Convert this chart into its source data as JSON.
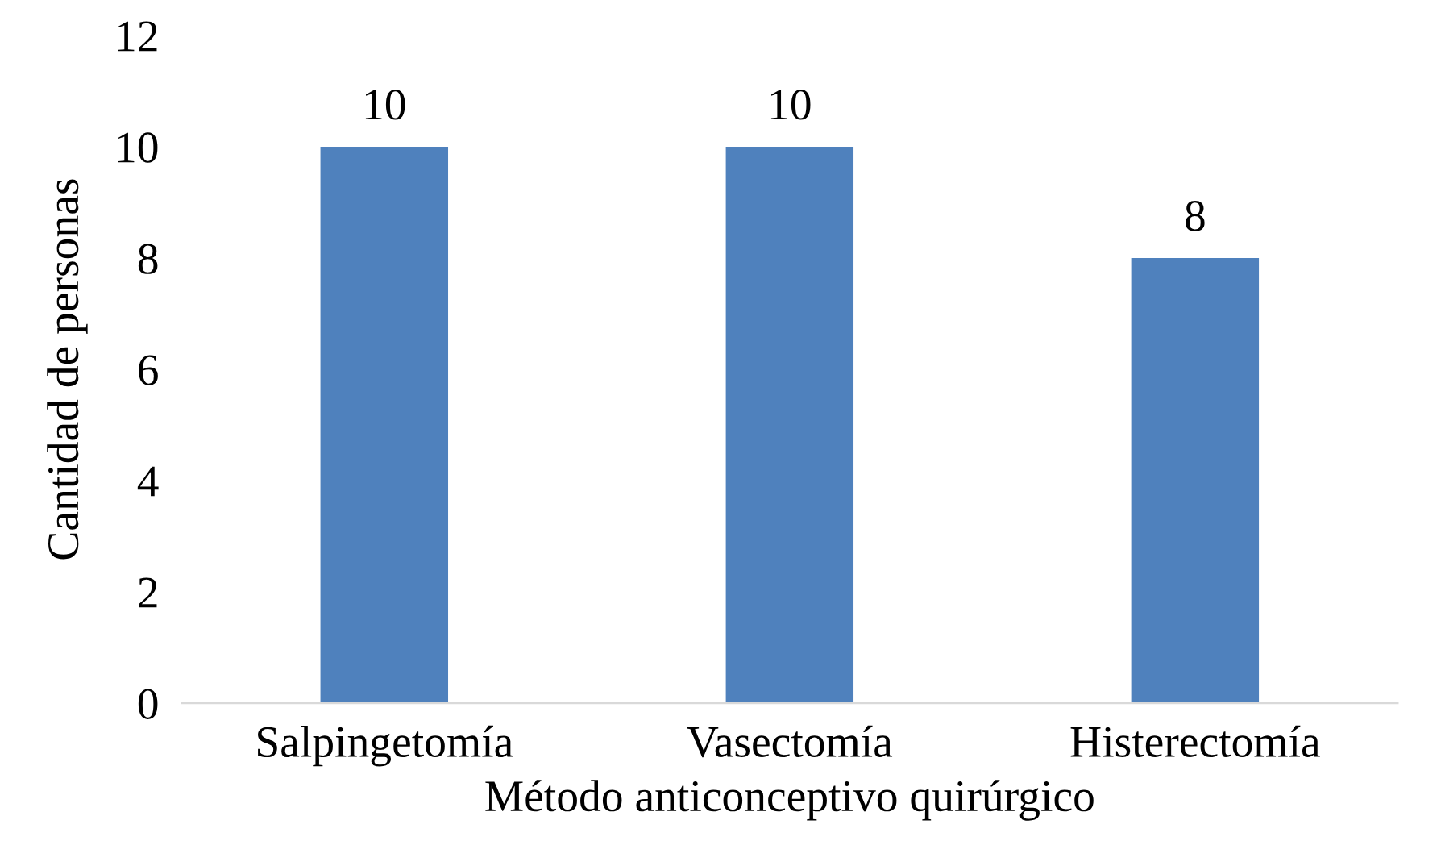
{
  "chart_data": {
    "type": "bar",
    "xlabel": "Método anticonceptivo quirúrgico",
    "ylabel": "Cantidad de personas",
    "categories": [
      "Salpingetomía",
      "Vasectomía",
      "Histerectomía"
    ],
    "values": [
      10,
      10,
      8
    ],
    "color": "#4f81bd",
    "ylim": [
      0,
      12
    ],
    "yticks": [
      0,
      2,
      4,
      6,
      8,
      10,
      12
    ],
    "grid": false,
    "data_labels": true
  }
}
